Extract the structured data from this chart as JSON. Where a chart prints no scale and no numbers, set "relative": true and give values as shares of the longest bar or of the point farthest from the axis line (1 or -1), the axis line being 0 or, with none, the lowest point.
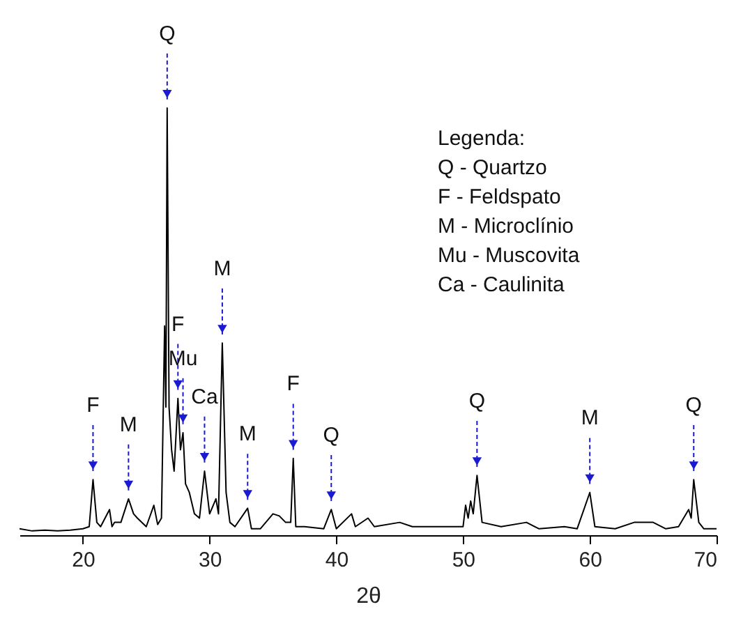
{
  "chart_data": {
    "type": "line",
    "xlabel": "2θ",
    "relative": true,
    "xlim": [
      15,
      70
    ],
    "xticks": [
      20,
      30,
      40,
      50,
      60,
      70
    ],
    "grid": false,
    "marker": "none",
    "line_style": "solid",
    "x": [
      15,
      16,
      17,
      18,
      19,
      20,
      20.5,
      20.8,
      21.1,
      21.4,
      22.1,
      22.3,
      22.5,
      23,
      23.6,
      24,
      24.3,
      25,
      25.6,
      25.9,
      26.2,
      26.45,
      26.55,
      26.65,
      26.8,
      27,
      27.2,
      27.5,
      27.7,
      27.9,
      28.1,
      28.4,
      28.8,
      29.2,
      29.6,
      30,
      30.5,
      30.7,
      31,
      31.3,
      31.6,
      32,
      33,
      33.3,
      34,
      35,
      35.5,
      36,
      36.4,
      36.6,
      36.8,
      37.5,
      39,
      39.6,
      40,
      41.2,
      41.5,
      42.5,
      43,
      45,
      46,
      48,
      50,
      50.2,
      50.4,
      50.6,
      50.8,
      51.1,
      51.5,
      53,
      55,
      56,
      58,
      59,
      60,
      60.4,
      62,
      63.5,
      65,
      66,
      67,
      67.8,
      68,
      68.2,
      68.6,
      69,
      70
    ],
    "series": [
      {
        "color": "#000000",
        "values": [
          0.015,
          0.01,
          0.012,
          0.01,
          0.012,
          0.015,
          0.02,
          0.13,
          0.03,
          0.02,
          0.06,
          0.02,
          0.03,
          0.03,
          0.085,
          0.05,
          0.04,
          0.02,
          0.07,
          0.025,
          0.04,
          0.49,
          0.3,
          1.0,
          0.3,
          0.2,
          0.15,
          0.32,
          0.2,
          0.24,
          0.12,
          0.1,
          0.05,
          0.04,
          0.15,
          0.05,
          0.085,
          0.05,
          0.45,
          0.1,
          0.03,
          0.02,
          0.063,
          0.015,
          0.015,
          0.05,
          0.045,
          0.03,
          0.03,
          0.18,
          0.02,
          0.02,
          0.015,
          0.06,
          0.015,
          0.05,
          0.02,
          0.04,
          0.02,
          0.03,
          0.02,
          0.02,
          0.02,
          0.07,
          0.04,
          0.08,
          0.05,
          0.14,
          0.03,
          0.02,
          0.03,
          0.015,
          0.02,
          0.015,
          0.1,
          0.02,
          0.015,
          0.03,
          0.03,
          0.015,
          0.02,
          0.06,
          0.04,
          0.13,
          0.03,
          0.015,
          0.015
        ]
      }
    ],
    "annotations": [
      {
        "text": "Q",
        "x": 26.65,
        "y": 1.0
      },
      {
        "text": "F",
        "x": 20.8,
        "y": 0.13
      },
      {
        "text": "M",
        "x": 23.6,
        "y": 0.085
      },
      {
        "text": "F",
        "x": 27.5,
        "y": 0.32
      },
      {
        "text": "Mu",
        "x": 27.9,
        "y": 0.24
      },
      {
        "text": "Ca",
        "x": 29.6,
        "y": 0.15
      },
      {
        "text": "M",
        "x": 31,
        "y": 0.45
      },
      {
        "text": "M",
        "x": 33,
        "y": 0.063
      },
      {
        "text": "F",
        "x": 36.6,
        "y": 0.18
      },
      {
        "text": "Q",
        "x": 39.6,
        "y": 0.06
      },
      {
        "text": "Q",
        "x": 51.1,
        "y": 0.14
      },
      {
        "text": "M",
        "x": 60,
        "y": 0.1
      },
      {
        "text": "Q",
        "x": 68.2,
        "y": 0.13
      },
      "Legenda:",
      "Q - Quartzo",
      "F - Feldspato",
      "M - Microclínio",
      "Mu - Muscovita",
      "Ca - Caulinita"
    ]
  }
}
